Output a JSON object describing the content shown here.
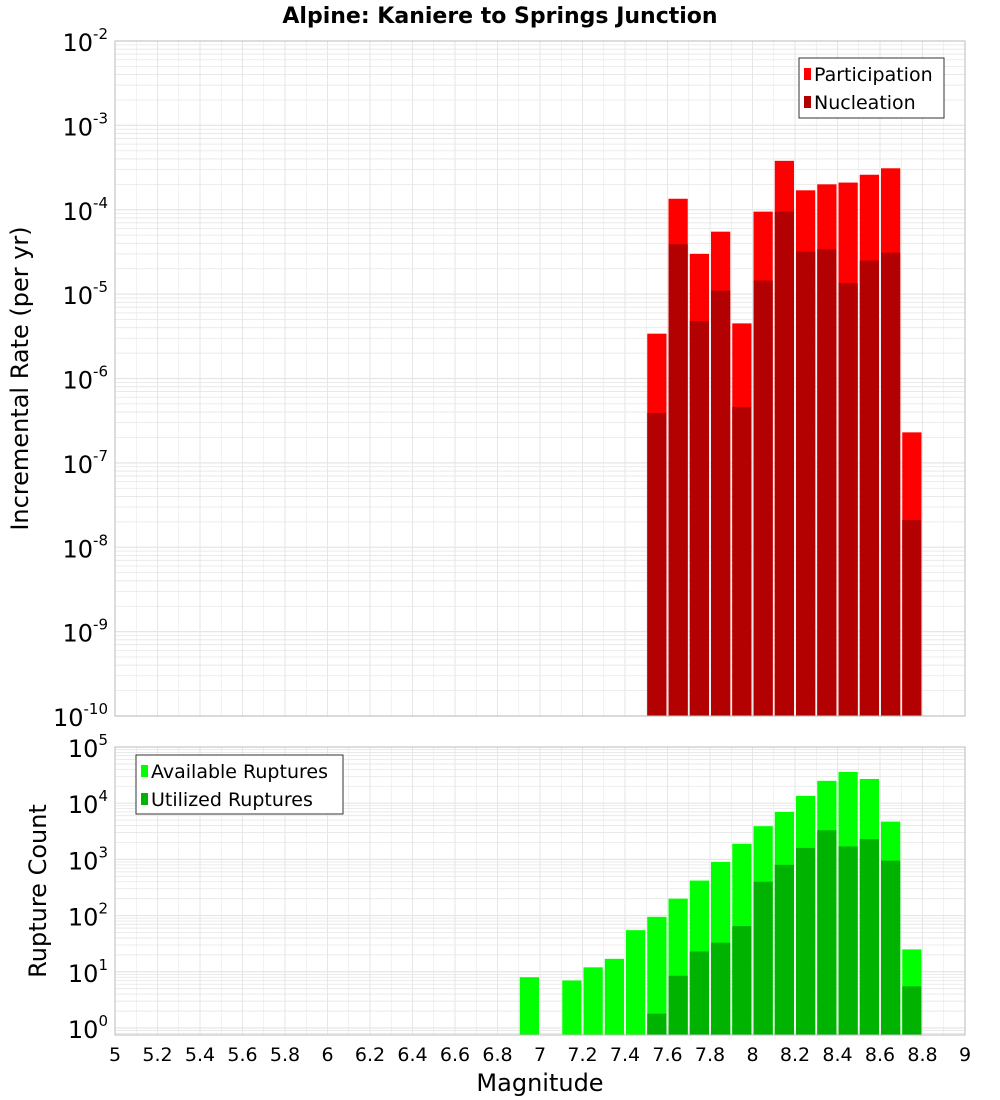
{
  "title": "Alpine: Kaniere to Springs Junction",
  "colors": {
    "participation": "#ff0000",
    "nucleation": "#b30000",
    "available": "#00ff00",
    "utilized": "#00b300",
    "grid": "#e6e6e6",
    "frame": "#bbbbbb"
  },
  "chart_data": [
    {
      "type": "bar",
      "title": "Alpine: Kaniere to Springs Junction",
      "ylabel": "Incremental Rate (per yr)",
      "xlabel": "",
      "yscale": "log",
      "ylim": [
        1e-10,
        0.01
      ],
      "y_ticks": [
        {
          "base": "10",
          "exp": "-2",
          "value": 0.01
        },
        {
          "base": "10",
          "exp": "-3",
          "value": 0.001
        },
        {
          "base": "10",
          "exp": "-4",
          "value": 0.0001
        },
        {
          "base": "10",
          "exp": "-5",
          "value": 1e-05
        },
        {
          "base": "10",
          "exp": "-6",
          "value": 1e-06
        },
        {
          "base": "10",
          "exp": "-7",
          "value": 1e-07
        },
        {
          "base": "10",
          "exp": "-8",
          "value": 1e-08
        },
        {
          "base": "10",
          "exp": "-9",
          "value": 1e-09
        },
        {
          "base": "10",
          "exp": "-10",
          "value": 1e-10
        }
      ],
      "legend": {
        "placement": "top-right",
        "entries": [
          "Participation",
          "Nucleation"
        ]
      },
      "grid": true,
      "x": [
        7.55,
        7.65,
        7.75,
        7.85,
        7.95,
        8.05,
        8.15,
        8.25,
        8.35,
        8.45,
        8.55,
        8.65,
        8.75
      ],
      "series": [
        {
          "name": "Participation",
          "color": "#ff0000",
          "values": [
            3.4e-06,
            0.000135,
            3e-05,
            5.5e-05,
            4.5e-06,
            9.5e-05,
            0.00038,
            0.00017,
            0.0002,
            0.00021,
            0.00026,
            0.00031,
            2.3e-07
          ]
        },
        {
          "name": "Nucleation",
          "color": "#b30000",
          "values": [
            3.9e-07,
            3.9e-05,
            4.8e-06,
            1.1e-05,
            4.6e-07,
            1.45e-05,
            9.5e-05,
            3.2e-05,
            3.4e-05,
            1.35e-05,
            2.5e-05,
            3.1e-05,
            2.1e-08
          ]
        }
      ]
    },
    {
      "type": "bar",
      "title": "",
      "ylabel": "Rupture Count",
      "xlabel": "Magnitude",
      "yscale": "log",
      "ylim": [
        0.75,
        100000.0
      ],
      "y_ticks": [
        {
          "base": "10",
          "exp": "5",
          "value": 100000.0
        },
        {
          "base": "10",
          "exp": "4",
          "value": 10000.0
        },
        {
          "base": "10",
          "exp": "3",
          "value": 1000.0
        },
        {
          "base": "10",
          "exp": "2",
          "value": 100.0
        },
        {
          "base": "10",
          "exp": "1",
          "value": 10.0
        },
        {
          "base": "10",
          "exp": "0",
          "value": 1
        }
      ],
      "xlim": [
        5,
        9
      ],
      "x_ticks": [
        "5",
        "5.2",
        "5.4",
        "5.6",
        "5.8",
        "6",
        "6.2",
        "6.4",
        "6.6",
        "6.8",
        "7",
        "7.2",
        "7.4",
        "7.6",
        "7.8",
        "8",
        "8.2",
        "8.4",
        "8.6",
        "8.8",
        "9"
      ],
      "legend": {
        "placement": "top-left",
        "entries": [
          "Available Ruptures",
          "Utilized Ruptures"
        ]
      },
      "grid": true,
      "x": [
        6.95,
        7.15,
        7.25,
        7.35,
        7.45,
        7.55,
        7.65,
        7.75,
        7.85,
        7.95,
        8.05,
        8.15,
        8.25,
        8.35,
        8.45,
        8.55,
        8.65,
        8.75
      ],
      "series": [
        {
          "name": "Available Ruptures",
          "color": "#00ff00",
          "values": [
            8,
            7,
            12,
            17,
            55,
            95,
            200,
            420,
            900,
            1900,
            3900,
            7000,
            13500,
            25000,
            36000,
            27000,
            4700,
            25
          ]
        },
        {
          "name": "Utilized Ruptures",
          "color": "#00b300",
          "values": [
            0,
            0,
            0,
            0,
            0,
            1.8,
            8.5,
            23,
            33,
            65,
            400,
            800,
            1600,
            3300,
            1700,
            2300,
            950,
            5.5
          ]
        }
      ]
    }
  ]
}
